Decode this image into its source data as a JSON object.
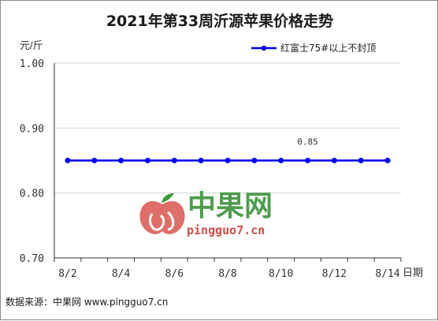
{
  "chart_data": {
    "type": "line",
    "title": "2021年第33周沂源苹果价格走势",
    "ylabel": "元/斤",
    "xlabel": "日期",
    "ylim": [
      0.7,
      1.0
    ],
    "yticks": [
      "0.70",
      "0.80",
      "0.90",
      "1.00"
    ],
    "categories": [
      "8/2",
      "8/3",
      "8/4",
      "8/5",
      "8/6",
      "8/7",
      "8/8",
      "8/9",
      "8/10",
      "8/11",
      "8/12",
      "8/13",
      "8/14"
    ],
    "xtick_labels": [
      "8/2",
      "8/4",
      "8/6",
      "8/8",
      "8/10",
      "8/12",
      "8/14"
    ],
    "series": [
      {
        "name": "红富士75#以上不封顶",
        "color": "#0000ee",
        "values": [
          0.85,
          0.85,
          0.85,
          0.85,
          0.85,
          0.85,
          0.85,
          0.85,
          0.85,
          0.85,
          0.85,
          0.85,
          0.85
        ]
      }
    ],
    "annotations": [
      {
        "category": "8/11",
        "text": "0.85"
      }
    ],
    "grid": "horizontal",
    "legend_position": "top-right"
  },
  "watermark": {
    "text": "中果网",
    "url": "pingguo7.cn",
    "logo_icon": "apple-logo-icon"
  },
  "source": "数据来源：中果网 www.pingguo7.cn"
}
